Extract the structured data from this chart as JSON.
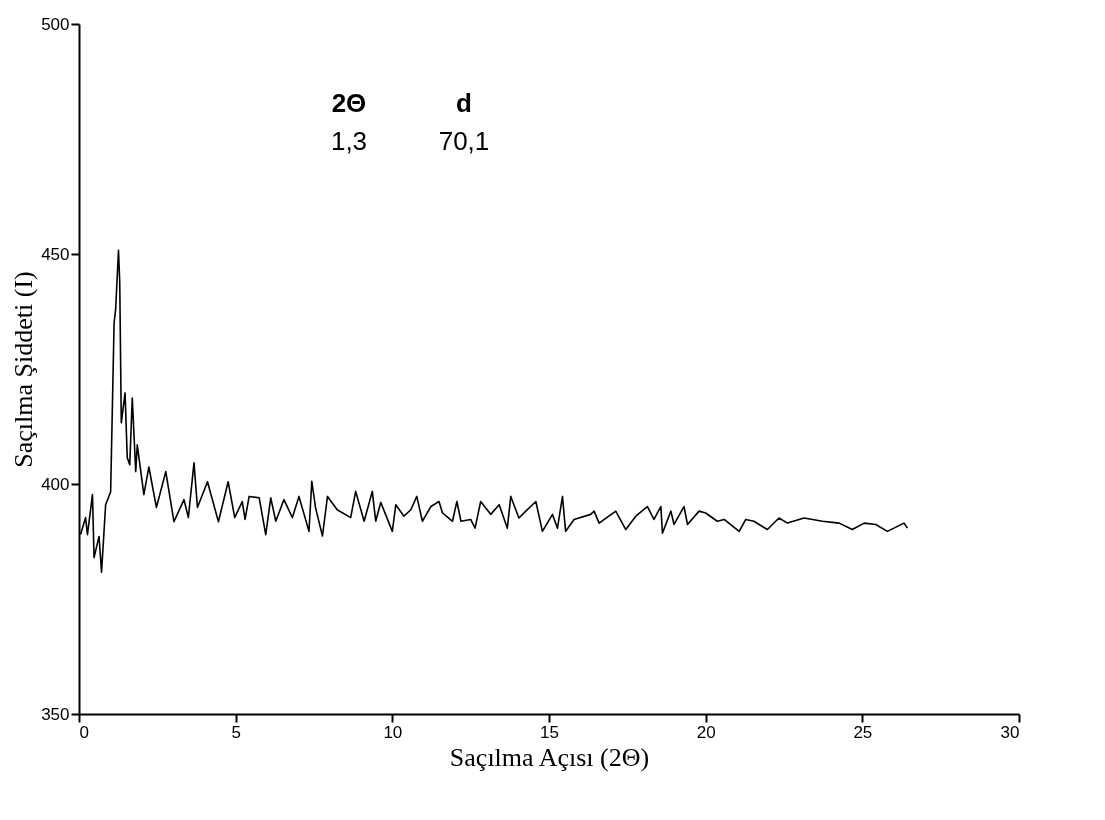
{
  "chart_data": {
    "type": "line",
    "xlabel": "Saçılma Açısı (2Θ)",
    "ylabel": "Saçılma Şiddeti (I)",
    "xlim": [
      0,
      30
    ],
    "xticks": [
      0,
      5,
      10,
      15,
      20,
      25,
      30
    ],
    "ylim": [
      350,
      500
    ],
    "yticks": [
      350,
      400,
      450,
      500
    ],
    "grid": false,
    "marker": "none",
    "line_style": "solid",
    "annotations": [
      "2Θ",
      "d",
      "1,3",
      "70,1"
    ],
    "series": [
      {
        "color": "#000000",
        "x": [
          0.05,
          0.21,
          0.27,
          0.43,
          0.48,
          0.64,
          0.72,
          0.85,
          1.01,
          1.12,
          1.17,
          1.26,
          1.3,
          1.35,
          1.47,
          1.54,
          1.62,
          1.7,
          1.81,
          1.86,
          2.07,
          2.23,
          2.47,
          2.77,
          3.03,
          3.35,
          3.49,
          3.67,
          3.78,
          4.1,
          4.45,
          4.76,
          4.97,
          5.21,
          5.3,
          5.43,
          5.75,
          5.96,
          6.12,
          6.28,
          6.54,
          6.81,
          7.02,
          7.34,
          7.43,
          7.55,
          7.77,
          7.93,
          8.24,
          8.67,
          8.83,
          9.1,
          9.36,
          9.47,
          9.63,
          10.0,
          10.11,
          10.37,
          10.59,
          10.78,
          10.96,
          11.23,
          11.49,
          11.6,
          11.92,
          12.06,
          12.19,
          12.5,
          12.64,
          12.82,
          13.14,
          13.41,
          13.67,
          13.78,
          14.04,
          14.26,
          14.58,
          14.79,
          15.11,
          15.27,
          15.43,
          15.53,
          15.8,
          16.33,
          16.44,
          16.6,
          17.13,
          17.45,
          17.77,
          18.14,
          18.35,
          18.57,
          18.62,
          18.89,
          18.99,
          19.31,
          19.42,
          19.79,
          20.0,
          20.37,
          20.59,
          21.07,
          21.28,
          21.54,
          21.97,
          22.34,
          22.61,
          23.14,
          23.73,
          24.26,
          24.68,
          25.06,
          25.43,
          25.8,
          26.33,
          26.44
        ],
        "values": [
          389,
          392.7,
          389,
          397.7,
          384,
          388.6,
          380.8,
          395.5,
          398.3,
          435,
          438,
          450.8,
          443.9,
          413.3,
          419.8,
          405.7,
          404.2,
          418.7,
          402.7,
          408.5,
          397.7,
          403.7,
          394.9,
          402.7,
          391.8,
          396.6,
          392.7,
          404.6,
          394.9,
          400.5,
          391.8,
          400.5,
          392.7,
          396.2,
          392.3,
          397.3,
          397,
          389,
          397,
          391.9,
          396.6,
          392.7,
          397.3,
          389.7,
          400.6,
          394.8,
          388.7,
          397.3,
          394.4,
          392.7,
          398.4,
          391.9,
          398.4,
          391.9,
          396,
          389.7,
          395.5,
          393,
          394.4,
          397.3,
          391.9,
          395.1,
          396.2,
          393.7,
          391.9,
          396.2,
          391.9,
          392.3,
          390.4,
          396.2,
          393.4,
          395.5,
          390.4,
          397.3,
          392.6,
          394.1,
          396.2,
          389.7,
          393.4,
          390.4,
          397.3,
          389.7,
          392.3,
          393.4,
          394.1,
          391.5,
          394.1,
          390.1,
          393,
          395.1,
          392.3,
          395.1,
          389.3,
          394.1,
          391.2,
          395.1,
          391.2,
          394.1,
          393.7,
          391.9,
          392.3,
          389.7,
          392.3,
          391.9,
          390.1,
          392.6,
          391.5,
          392.6,
          391.9,
          391.5,
          390.1,
          391.5,
          391.2,
          389.7,
          391.5,
          390.4
        ]
      }
    ]
  }
}
